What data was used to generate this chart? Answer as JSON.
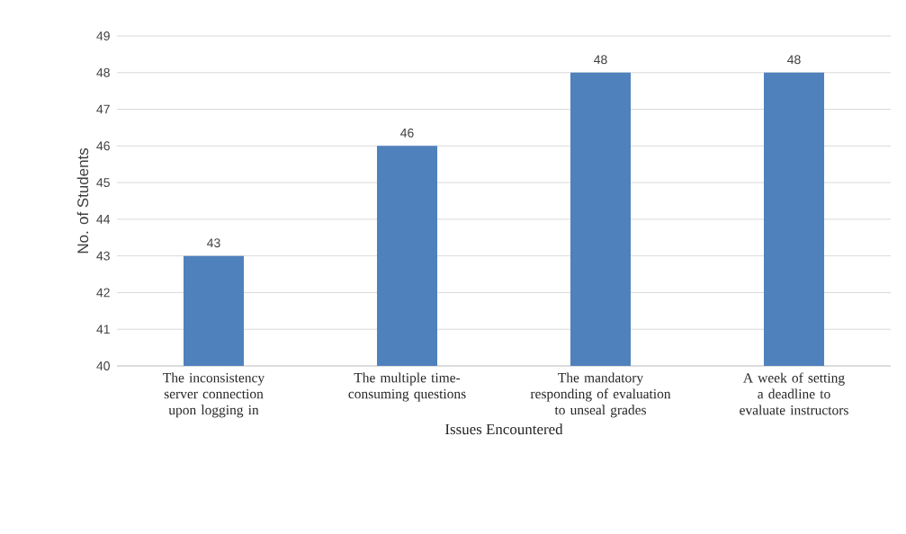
{
  "chart_data": {
    "type": "bar",
    "xlabel": "Issues Encountered",
    "ylabel": "No. of Students",
    "categories": [
      "The inconsistency server connection upon logging in",
      "The multiple time-consuming questions",
      "The mandatory responding of evaluation to unseal grades",
      "A week of setting a deadline to evaluate instructors"
    ],
    "values": [
      43,
      46,
      48,
      48
    ],
    "color": "#4f81bd",
    "ylim": [
      40,
      49
    ],
    "yticks": [
      40,
      41,
      42,
      43,
      44,
      45,
      46,
      47,
      48,
      49
    ],
    "grid": "y",
    "data_labels": true
  }
}
